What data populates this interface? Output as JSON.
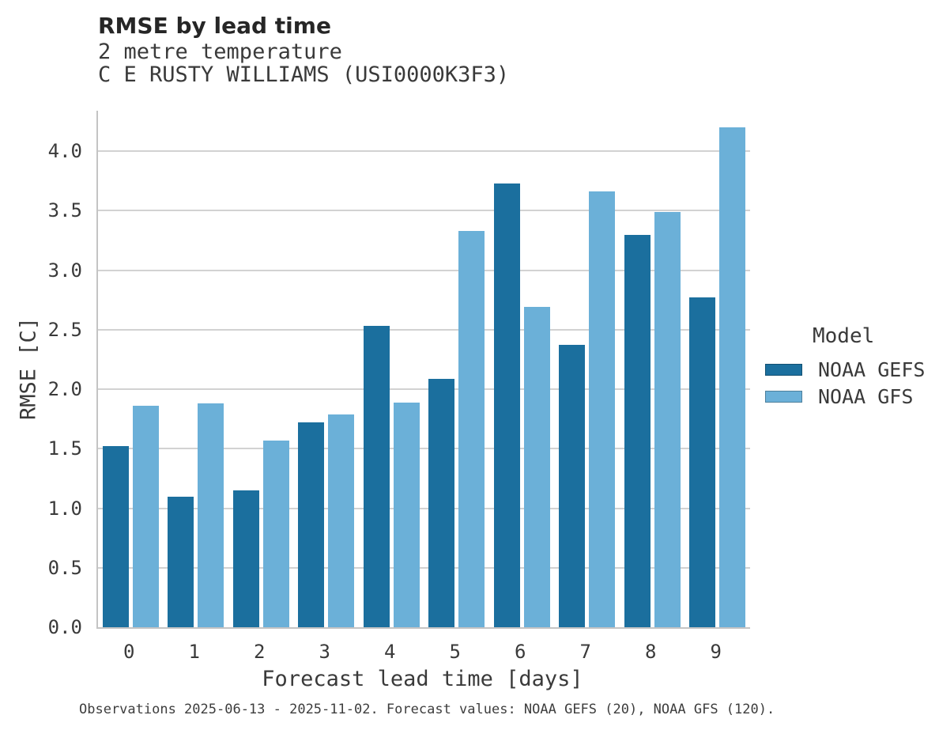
{
  "chart_data": {
    "type": "bar",
    "title": "RMSE by lead time",
    "subtitle_lines": [
      "2 metre temperature",
      "C E RUSTY WILLIAMS (USI0000K3F3)"
    ],
    "xlabel": "Forecast lead time [days]",
    "ylabel": "RMSE [C]",
    "categories": [
      "0",
      "1",
      "2",
      "3",
      "4",
      "5",
      "6",
      "7",
      "8",
      "9"
    ],
    "series": [
      {
        "name": "NOAA GEFS",
        "color": "#1b6f9e",
        "values": [
          1.52,
          1.1,
          1.15,
          1.72,
          2.53,
          2.09,
          3.73,
          2.37,
          3.3,
          2.77
        ]
      },
      {
        "name": "NOAA GFS",
        "color": "#6bb0d8",
        "values": [
          1.86,
          1.88,
          1.57,
          1.79,
          1.89,
          3.33,
          2.69,
          3.66,
          3.49,
          4.2
        ]
      }
    ],
    "ylim": [
      0,
      4.34
    ],
    "yticks": [
      0.0,
      0.5,
      1.0,
      1.5,
      2.0,
      2.5,
      3.0,
      3.5,
      4.0
    ],
    "ytick_decimals": 1,
    "grid": true,
    "legend": {
      "title": "Model",
      "position": "right"
    },
    "caption": "Observations 2025-06-13 - 2025-11-02. Forecast values: NOAA GEFS (20), NOAA GFS (120).",
    "colors": {
      "grid": "#d2d2d2",
      "spine": "#c4c4c4",
      "title_text": "#262626",
      "text": "#3a3a3a"
    }
  }
}
